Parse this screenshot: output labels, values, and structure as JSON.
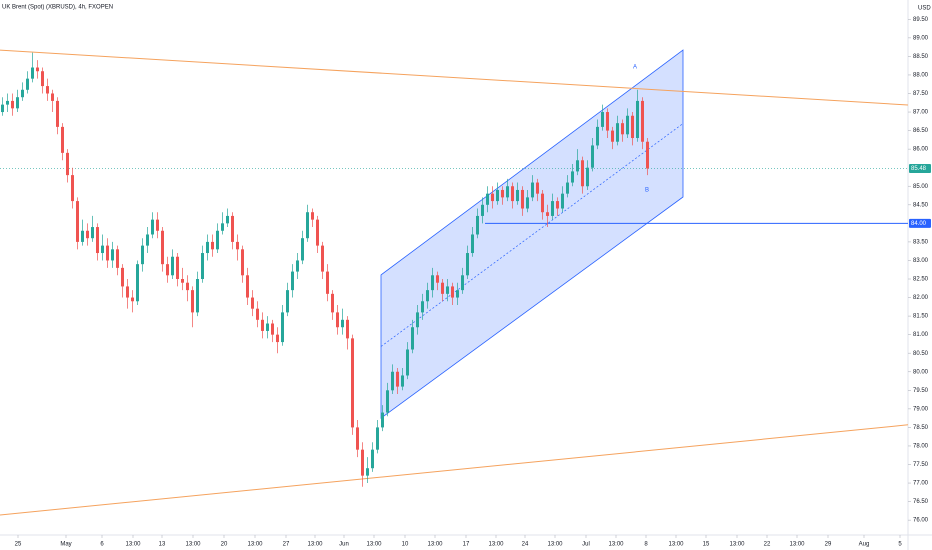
{
  "chart_data": {
    "type": "candlestick",
    "title": "UK Brent (Spot) (XBRUSD), 4h, FXOPEN",
    "currency": "USD",
    "up_color": "#26a69a",
    "down_color": "#ef5350",
    "xlim": [
      -0.5,
      181.1
    ],
    "ylim": [
      75.6,
      90.02
    ],
    "yticks": [
      {
        "value": 76,
        "label": "76.00"
      },
      {
        "value": 76.5,
        "label": "76.50"
      },
      {
        "value": 77,
        "label": "77.00"
      },
      {
        "value": 77.5,
        "label": "77.50"
      },
      {
        "value": 78,
        "label": "78.00"
      },
      {
        "value": 78.5,
        "label": "78.50"
      },
      {
        "value": 79,
        "label": "79.00"
      },
      {
        "value": 79.5,
        "label": "79.50"
      },
      {
        "value": 80,
        "label": "80.00"
      },
      {
        "value": 80.5,
        "label": "80.50"
      },
      {
        "value": 81,
        "label": "81.00"
      },
      {
        "value": 81.5,
        "label": "81.50"
      },
      {
        "value": 82,
        "label": "82.00"
      },
      {
        "value": 82.5,
        "label": "82.50"
      },
      {
        "value": 83,
        "label": "83.00"
      },
      {
        "value": 83.5,
        "label": "83.50"
      },
      {
        "value": 84.5,
        "label": "84.50"
      },
      {
        "value": 85,
        "label": "85.00"
      },
      {
        "value": 86,
        "label": "86.00"
      },
      {
        "value": 86.5,
        "label": "86.50"
      },
      {
        "value": 87,
        "label": "87.00"
      },
      {
        "value": 87.5,
        "label": "87.50"
      },
      {
        "value": 88,
        "label": "88.00"
      },
      {
        "value": 88.5,
        "label": "88.50"
      },
      {
        "value": 89,
        "label": "89.00"
      },
      {
        "value": 89.5,
        "label": "89.50"
      }
    ],
    "xticks": [
      {
        "value": 3.1,
        "label": "25"
      },
      {
        "value": 12.7,
        "label": "May"
      },
      {
        "value": 19.9,
        "label": "6"
      },
      {
        "value": 26.1,
        "label": "13:00"
      },
      {
        "value": 31.9,
        "label": "13"
      },
      {
        "value": 38.1,
        "label": "13:00"
      },
      {
        "value": 44.3,
        "label": "20"
      },
      {
        "value": 50.5,
        "label": "13:00"
      },
      {
        "value": 56.7,
        "label": "27"
      },
      {
        "value": 62.5,
        "label": "13:00"
      },
      {
        "value": 68.3,
        "label": "Jun"
      },
      {
        "value": 74.3,
        "label": "13:00"
      },
      {
        "value": 80.5,
        "label": "10"
      },
      {
        "value": 86.5,
        "label": "13:00"
      },
      {
        "value": 92.7,
        "label": "17"
      },
      {
        "value": 98.7,
        "label": "13:00"
      },
      {
        "value": 104.5,
        "label": "24"
      },
      {
        "value": 110.5,
        "label": "13:00"
      },
      {
        "value": 116.7,
        "label": "Jul"
      },
      {
        "value": 122.7,
        "label": "13:00"
      },
      {
        "value": 128.7,
        "label": "8"
      },
      {
        "value": 134.7,
        "label": "13:00"
      },
      {
        "value": 140.7,
        "label": "15"
      },
      {
        "value": 146.9,
        "label": "13:00"
      },
      {
        "value": 152.9,
        "label": "22"
      },
      {
        "value": 158.9,
        "label": "13:00"
      },
      {
        "value": 165.1,
        "label": "29"
      },
      {
        "value": 172.3,
        "label": "Aug"
      },
      {
        "value": 179.5,
        "label": "5"
      }
    ],
    "candles": [
      [
        87.0,
        87.4,
        86.9,
        87.2
      ],
      [
        87.2,
        87.5,
        87.0,
        87.3
      ],
      [
        87.3,
        87.5,
        86.9,
        87.1
      ],
      [
        87.1,
        87.6,
        87.0,
        87.4
      ],
      [
        87.4,
        87.8,
        87.3,
        87.6
      ],
      [
        87.6,
        88.1,
        87.5,
        87.9
      ],
      [
        87.9,
        88.6,
        87.8,
        88.2
      ],
      [
        88.2,
        88.4,
        87.9,
        88.1
      ],
      [
        88.1,
        88.2,
        87.5,
        87.7
      ],
      [
        87.7,
        87.9,
        87.3,
        87.5
      ],
      [
        87.5,
        87.6,
        87.0,
        87.3
      ],
      [
        87.3,
        87.4,
        86.4,
        86.6
      ],
      [
        86.6,
        86.7,
        85.7,
        85.9
      ],
      [
        85.9,
        86.0,
        85.1,
        85.3
      ],
      [
        85.3,
        85.5,
        84.4,
        84.6
      ],
      [
        84.6,
        84.7,
        83.3,
        83.5
      ],
      [
        83.5,
        84.1,
        83.4,
        83.8
      ],
      [
        83.8,
        84.0,
        83.4,
        83.6
      ],
      [
        83.6,
        84.2,
        83.5,
        83.9
      ],
      [
        83.9,
        84.0,
        83.0,
        83.2
      ],
      [
        83.2,
        83.7,
        83.0,
        83.4
      ],
      [
        83.4,
        83.6,
        82.8,
        83.0
      ],
      [
        83.0,
        83.5,
        82.8,
        83.3
      ],
      [
        83.3,
        83.4,
        82.6,
        82.8
      ],
      [
        82.8,
        82.9,
        82.0,
        82.3
      ],
      [
        82.3,
        82.5,
        81.7,
        82.0
      ],
      [
        82.0,
        82.2,
        81.6,
        81.9
      ],
      [
        81.9,
        83.0,
        81.8,
        82.9
      ],
      [
        82.9,
        83.6,
        82.7,
        83.4
      ],
      [
        83.4,
        83.9,
        83.2,
        83.7
      ],
      [
        83.7,
        84.3,
        83.6,
        84.1
      ],
      [
        84.1,
        84.3,
        83.6,
        83.8
      ],
      [
        83.8,
        83.9,
        82.7,
        82.9
      ],
      [
        82.9,
        83.1,
        82.4,
        82.6
      ],
      [
        82.6,
        83.3,
        82.5,
        83.1
      ],
      [
        83.1,
        83.2,
        82.3,
        82.5
      ],
      [
        82.5,
        82.8,
        82.2,
        82.4
      ],
      [
        82.4,
        82.6,
        81.9,
        82.2
      ],
      [
        82.2,
        82.3,
        81.2,
        81.6
      ],
      [
        81.6,
        82.7,
        81.5,
        82.5
      ],
      [
        82.5,
        83.4,
        82.4,
        83.2
      ],
      [
        83.2,
        83.7,
        83.0,
        83.5
      ],
      [
        83.5,
        83.7,
        83.1,
        83.3
      ],
      [
        83.3,
        84.0,
        83.2,
        83.8
      ],
      [
        83.8,
        84.3,
        83.7,
        84.0
      ],
      [
        84.0,
        84.4,
        83.9,
        84.2
      ],
      [
        84.2,
        84.3,
        83.3,
        83.5
      ],
      [
        83.5,
        83.7,
        83.0,
        83.3
      ],
      [
        83.3,
        83.4,
        82.4,
        82.6
      ],
      [
        82.6,
        82.8,
        81.8,
        82.0
      ],
      [
        82.0,
        82.2,
        81.5,
        81.7
      ],
      [
        81.7,
        81.9,
        81.2,
        81.4
      ],
      [
        81.4,
        81.6,
        80.9,
        81.1
      ],
      [
        81.1,
        81.5,
        80.9,
        81.3
      ],
      [
        81.3,
        81.4,
        80.8,
        81.0
      ],
      [
        81.0,
        81.2,
        80.5,
        80.8
      ],
      [
        80.8,
        81.8,
        80.7,
        81.6
      ],
      [
        81.6,
        82.4,
        81.5,
        82.2
      ],
      [
        82.2,
        82.9,
        82.0,
        82.7
      ],
      [
        82.7,
        83.2,
        82.5,
        83.0
      ],
      [
        83.0,
        83.8,
        82.9,
        83.6
      ],
      [
        83.6,
        84.5,
        83.5,
        84.3
      ],
      [
        84.3,
        84.4,
        83.9,
        84.1
      ],
      [
        84.1,
        84.2,
        83.2,
        83.4
      ],
      [
        83.4,
        83.5,
        82.5,
        82.7
      ],
      [
        82.7,
        82.9,
        81.9,
        82.1
      ],
      [
        82.1,
        82.2,
        81.4,
        81.6
      ],
      [
        81.6,
        81.8,
        81.0,
        81.2
      ],
      [
        81.2,
        81.7,
        81.0,
        81.4
      ],
      [
        81.4,
        81.5,
        80.6,
        80.9
      ],
      [
        80.9,
        81.0,
        78.3,
        78.5
      ],
      [
        78.5,
        78.7,
        77.7,
        77.9
      ],
      [
        77.9,
        78.1,
        76.9,
        77.2
      ],
      [
        77.2,
        77.7,
        77.0,
        77.4
      ],
      [
        77.4,
        78.1,
        77.3,
        77.9
      ],
      [
        77.9,
        78.7,
        77.8,
        78.5
      ],
      [
        78.5,
        79.1,
        78.4,
        78.9
      ],
      [
        78.9,
        79.7,
        78.8,
        79.5
      ],
      [
        79.5,
        80.2,
        79.4,
        80.0
      ],
      [
        80.0,
        80.1,
        79.4,
        79.6
      ],
      [
        79.6,
        80.1,
        79.5,
        79.9
      ],
      [
        79.9,
        80.8,
        79.8,
        80.6
      ],
      [
        80.6,
        81.4,
        80.5,
        81.2
      ],
      [
        81.2,
        81.8,
        81.0,
        81.6
      ],
      [
        81.6,
        82.1,
        81.4,
        81.9
      ],
      [
        81.9,
        82.4,
        81.7,
        82.2
      ],
      [
        82.2,
        82.8,
        82.0,
        82.6
      ],
      [
        82.6,
        82.7,
        82.2,
        82.4
      ],
      [
        82.4,
        82.5,
        81.9,
        82.1
      ],
      [
        82.1,
        82.5,
        81.9,
        82.3
      ],
      [
        82.3,
        82.4,
        81.8,
        82.0
      ],
      [
        82.0,
        82.4,
        81.8,
        82.2
      ],
      [
        82.2,
        82.8,
        82.1,
        82.6
      ],
      [
        82.6,
        83.4,
        82.5,
        83.2
      ],
      [
        83.2,
        83.9,
        83.1,
        83.7
      ],
      [
        83.7,
        84.4,
        83.6,
        84.2
      ],
      [
        84.2,
        84.7,
        84.0,
        84.5
      ],
      [
        84.5,
        85.0,
        84.3,
        84.8
      ],
      [
        84.8,
        85.0,
        84.4,
        84.6
      ],
      [
        84.6,
        85.1,
        84.5,
        84.9
      ],
      [
        84.9,
        85.0,
        84.5,
        84.7
      ],
      [
        84.7,
        85.2,
        84.6,
        85.0
      ],
      [
        85.0,
        85.1,
        84.4,
        84.6
      ],
      [
        84.6,
        85.1,
        84.5,
        84.9
      ],
      [
        84.9,
        85.0,
        84.2,
        84.4
      ],
      [
        84.4,
        84.9,
        84.3,
        84.7
      ],
      [
        84.7,
        85.3,
        84.6,
        85.1
      ],
      [
        85.1,
        85.2,
        84.6,
        84.8
      ],
      [
        84.8,
        84.9,
        84.1,
        84.3
      ],
      [
        84.3,
        84.5,
        83.9,
        84.2
      ],
      [
        84.2,
        84.8,
        84.1,
        84.6
      ],
      [
        84.6,
        84.7,
        84.2,
        84.4
      ],
      [
        84.4,
        85.0,
        84.3,
        84.8
      ],
      [
        84.8,
        85.3,
        84.7,
        85.1
      ],
      [
        85.1,
        85.6,
        85.0,
        85.4
      ],
      [
        85.4,
        86.0,
        85.3,
        85.7
      ],
      [
        85.7,
        85.8,
        84.8,
        85.0
      ],
      [
        85.0,
        85.7,
        84.9,
        85.5
      ],
      [
        85.5,
        86.3,
        85.4,
        86.1
      ],
      [
        86.1,
        86.8,
        86.0,
        86.6
      ],
      [
        86.6,
        87.2,
        86.5,
        87.0
      ],
      [
        87.0,
        87.1,
        86.3,
        86.5
      ],
      [
        86.5,
        86.6,
        86.0,
        86.2
      ],
      [
        86.2,
        86.9,
        86.1,
        86.7
      ],
      [
        86.7,
        86.8,
        86.2,
        86.4
      ],
      [
        86.4,
        87.1,
        86.3,
        86.9
      ],
      [
        86.9,
        87.0,
        86.1,
        86.3
      ],
      [
        86.3,
        87.6,
        86.2,
        87.3
      ],
      [
        87.3,
        87.4,
        86.0,
        86.2
      ],
      [
        86.2,
        86.3,
        85.3,
        85.48
      ]
    ],
    "price_line": {
      "value": 85.48,
      "label": "85.48",
      "color": "#26a69a"
    },
    "level": {
      "x": [
        96.5,
        181.1
      ],
      "value": 84,
      "label": "84.00",
      "color": "#2962ff"
    },
    "trendlines": [
      {
        "x": [
          -0.5,
          181.1
        ],
        "y": [
          88.67,
          87.19
        ],
        "color": "#f5a25d"
      },
      {
        "x": [
          -0.5,
          181.1
        ],
        "y": [
          76.14,
          78.57
        ],
        "color": "#f5a25d"
      }
    ],
    "channel": {
      "x": [
        75.7,
        136.1
      ],
      "top": [
        82.61,
        88.67
      ],
      "bottom": [
        78.75,
        84.71
      ],
      "color": "#2962ff"
    },
    "annotations": [
      {
        "text": "A",
        "x": 126.5,
        "y": 88.21
      },
      {
        "text": "B",
        "x": 128.9,
        "y": 84.9
      }
    ]
  }
}
